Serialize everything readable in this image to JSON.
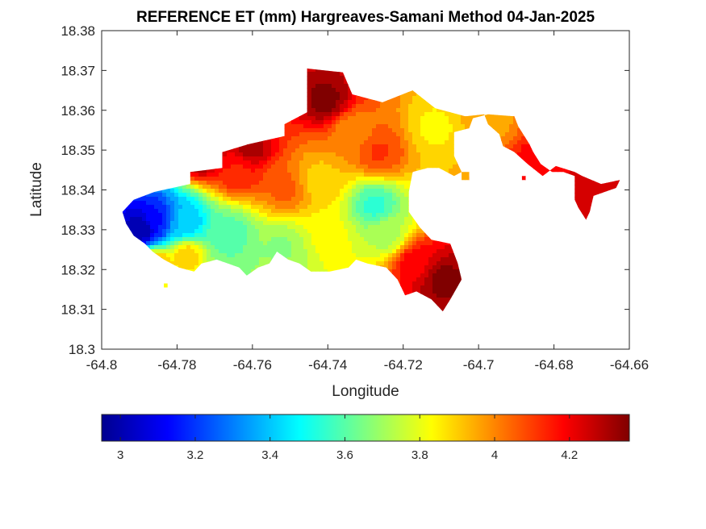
{
  "chart_data": {
    "type": "heatmap",
    "title": "REFERENCE ET (mm) Hargreaves-Samani Method  04-Jan-2025",
    "xlabel": "Longitude",
    "ylabel": "Latitude",
    "xlim": [
      -64.8,
      -64.66
    ],
    "ylim": [
      18.3,
      18.38
    ],
    "xticks": [
      -64.8,
      -64.78,
      -64.76,
      -64.74,
      -64.72,
      -64.7,
      -64.68,
      -64.66
    ],
    "xtick_labels": [
      "-64.8",
      "-64.78",
      "-64.76",
      "-64.74",
      "-64.72",
      "-64.7",
      "-64.68",
      "-64.66"
    ],
    "yticks": [
      18.3,
      18.31,
      18.32,
      18.33,
      18.34,
      18.35,
      18.36,
      18.37,
      18.38
    ],
    "ytick_labels": [
      "18.3",
      "18.31",
      "18.32",
      "18.33",
      "18.34",
      "18.35",
      "18.36",
      "18.37",
      "18.38"
    ],
    "colormap": "jet",
    "colorbar": {
      "placement": "bottom",
      "range": [
        2.95,
        4.36
      ],
      "ticks": [
        3,
        3.2,
        3.4,
        3.6,
        3.8,
        4,
        4.2
      ],
      "tick_labels": [
        "3",
        "3.2",
        "3.4",
        "3.6",
        "3.8",
        "4",
        "4.2"
      ]
    },
    "field": {
      "boundary_lonlat": [
        [
          -64.7935,
          18.3355
        ],
        [
          -64.7915,
          18.3375
        ],
        [
          -64.786,
          18.3395
        ],
        [
          -64.7765,
          18.3415
        ],
        [
          -64.7765,
          18.3445
        ],
        [
          -64.768,
          18.3455
        ],
        [
          -64.768,
          18.3495
        ],
        [
          -64.761,
          18.3515
        ],
        [
          -64.7515,
          18.3535
        ],
        [
          -64.7515,
          18.3565
        ],
        [
          -64.7455,
          18.3595
        ],
        [
          -64.7455,
          18.3705
        ],
        [
          -64.736,
          18.3695
        ],
        [
          -64.7335,
          18.364
        ],
        [
          -64.7255,
          18.362
        ],
        [
          -64.7175,
          18.365
        ],
        [
          -64.7115,
          18.3605
        ],
        [
          -64.7035,
          18.3585
        ],
        [
          -64.6985,
          18.359
        ],
        [
          -64.6975,
          18.3565
        ],
        [
          -64.6945,
          18.354
        ],
        [
          -64.6935,
          18.351
        ],
        [
          -64.6905,
          18.3495
        ],
        [
          -64.687,
          18.3465
        ],
        [
          -64.683,
          18.3435
        ],
        [
          -64.6795,
          18.346
        ],
        [
          -64.6745,
          18.3445
        ],
        [
          -64.6725,
          18.3435
        ],
        [
          -64.6675,
          18.3415
        ],
        [
          -64.6625,
          18.3425
        ],
        [
          -64.6635,
          18.3405
        ],
        [
          -64.6695,
          18.3385
        ],
        [
          -64.6705,
          18.3345
        ],
        [
          -64.6715,
          18.3325
        ],
        [
          -64.6735,
          18.3355
        ],
        [
          -64.6745,
          18.3375
        ],
        [
          -64.6745,
          18.3435
        ],
        [
          -64.6775,
          18.3445
        ],
        [
          -64.6805,
          18.3445
        ],
        [
          -64.6835,
          18.3465
        ],
        [
          -64.6855,
          18.3495
        ],
        [
          -64.6865,
          18.3515
        ],
        [
          -64.6895,
          18.356
        ],
        [
          -64.6905,
          18.3585
        ],
        [
          -64.6975,
          18.359
        ],
        [
          -64.7015,
          18.358
        ],
        [
          -64.7025,
          18.3555
        ],
        [
          -64.7065,
          18.3545
        ],
        [
          -64.7065,
          18.3485
        ],
        [
          -64.7045,
          18.3445
        ],
        [
          -64.7065,
          18.3435
        ],
        [
          -64.7105,
          18.3455
        ],
        [
          -64.7135,
          18.3455
        ],
        [
          -64.7175,
          18.3445
        ],
        [
          -64.7185,
          18.3395
        ],
        [
          -64.7185,
          18.3345
        ],
        [
          -64.7155,
          18.3305
        ],
        [
          -64.7125,
          18.3275
        ],
        [
          -64.7075,
          18.3265
        ],
        [
          -64.7055,
          18.3215
        ],
        [
          -64.7045,
          18.3175
        ],
        [
          -64.7075,
          18.3125
        ],
        [
          -64.7095,
          18.3095
        ],
        [
          -64.7125,
          18.3125
        ],
        [
          -64.7165,
          18.3145
        ],
        [
          -64.7195,
          18.3135
        ],
        [
          -64.7215,
          18.3175
        ],
        [
          -64.7245,
          18.3205
        ],
        [
          -64.7295,
          18.3215
        ],
        [
          -64.7325,
          18.3225
        ],
        [
          -64.7345,
          18.3205
        ],
        [
          -64.7395,
          18.3195
        ],
        [
          -64.7445,
          18.3195
        ],
        [
          -64.7475,
          18.3215
        ],
        [
          -64.7505,
          18.3225
        ],
        [
          -64.7535,
          18.3245
        ],
        [
          -64.7555,
          18.3215
        ],
        [
          -64.7585,
          18.3205
        ],
        [
          -64.7615,
          18.3185
        ],
        [
          -64.7635,
          18.3205
        ],
        [
          -64.7665,
          18.3215
        ],
        [
          -64.7695,
          18.3225
        ],
        [
          -64.7735,
          18.3215
        ],
        [
          -64.7755,
          18.3195
        ],
        [
          -64.7795,
          18.3205
        ],
        [
          -64.7835,
          18.3225
        ],
        [
          -64.7865,
          18.3245
        ],
        [
          -64.7885,
          18.3265
        ],
        [
          -64.7915,
          18.3285
        ],
        [
          -64.7935,
          18.3315
        ],
        [
          -64.7945,
          18.3345
        ]
      ],
      "centers": [
        {
          "lon": -64.7895,
          "lat": 18.3305,
          "value": 2.98,
          "radius_deg": 0.0055
        },
        {
          "lon": -64.7855,
          "lat": 18.3325,
          "value": 3.15,
          "radius_deg": 0.007
        },
        {
          "lon": -64.778,
          "lat": 18.332,
          "value": 3.4,
          "radius_deg": 0.008
        },
        {
          "lon": -64.766,
          "lat": 18.329,
          "value": 3.6,
          "radius_deg": 0.009
        },
        {
          "lon": -64.7525,
          "lat": 18.3255,
          "value": 3.68,
          "radius_deg": 0.008
        },
        {
          "lon": -64.7275,
          "lat": 18.336,
          "value": 3.55,
          "radius_deg": 0.006
        },
        {
          "lon": -64.7245,
          "lat": 18.329,
          "value": 3.72,
          "radius_deg": 0.006
        },
        {
          "lon": -64.7395,
          "lat": 18.3285,
          "value": 3.82,
          "radius_deg": 0.006
        },
        {
          "lon": -64.7425,
          "lat": 18.3425,
          "value": 3.9,
          "radius_deg": 0.006
        },
        {
          "lon": -64.7515,
          "lat": 18.3405,
          "value": 4.05,
          "radius_deg": 0.007
        },
        {
          "lon": -64.7635,
          "lat": 18.3445,
          "value": 4.15,
          "radius_deg": 0.006
        },
        {
          "lon": -64.7735,
          "lat": 18.3485,
          "value": 4.35,
          "radius_deg": 0.004
        },
        {
          "lon": -64.7605,
          "lat": 18.3505,
          "value": 4.3,
          "radius_deg": 0.004
        },
        {
          "lon": -64.7405,
          "lat": 18.3625,
          "value": 4.35,
          "radius_deg": 0.005
        },
        {
          "lon": -64.7335,
          "lat": 18.3545,
          "value": 4.0,
          "radius_deg": 0.007
        },
        {
          "lon": -64.7265,
          "lat": 18.3495,
          "value": 4.1,
          "radius_deg": 0.006
        },
        {
          "lon": -64.7115,
          "lat": 18.3555,
          "value": 3.85,
          "radius_deg": 0.005
        },
        {
          "lon": -64.6985,
          "lat": 18.3575,
          "value": 3.95,
          "radius_deg": 0.004
        },
        {
          "lon": -64.6835,
          "lat": 18.3455,
          "value": 4.2,
          "radius_deg": 0.005
        },
        {
          "lon": -64.6715,
          "lat": 18.3385,
          "value": 4.25,
          "radius_deg": 0.005
        },
        {
          "lon": -64.7165,
          "lat": 18.3215,
          "value": 4.2,
          "radius_deg": 0.005
        },
        {
          "lon": -64.7095,
          "lat": 18.3175,
          "value": 4.35,
          "radius_deg": 0.006
        },
        {
          "lon": -64.7855,
          "lat": 18.3215,
          "value": 3.95,
          "radius_deg": 0.002
        },
        {
          "lon": -64.7775,
          "lat": 18.3235,
          "value": 3.9,
          "radius_deg": 0.003
        }
      ],
      "islands_lonlat": [
        [
          [
            -64.7835,
            18.3155
          ],
          [
            -64.7825,
            18.3155
          ],
          [
            -64.7825,
            18.3165
          ],
          [
            -64.7835,
            18.3165
          ]
        ],
        [
          [
            -64.7045,
            18.3445
          ],
          [
            -64.7025,
            18.3445
          ],
          [
            -64.7025,
            18.3425
          ],
          [
            -64.7045,
            18.3425
          ]
        ],
        [
          [
            -64.6885,
            18.3435
          ],
          [
            -64.6875,
            18.3435
          ],
          [
            -64.6875,
            18.3425
          ],
          [
            -64.6885,
            18.3425
          ]
        ]
      ]
    }
  }
}
